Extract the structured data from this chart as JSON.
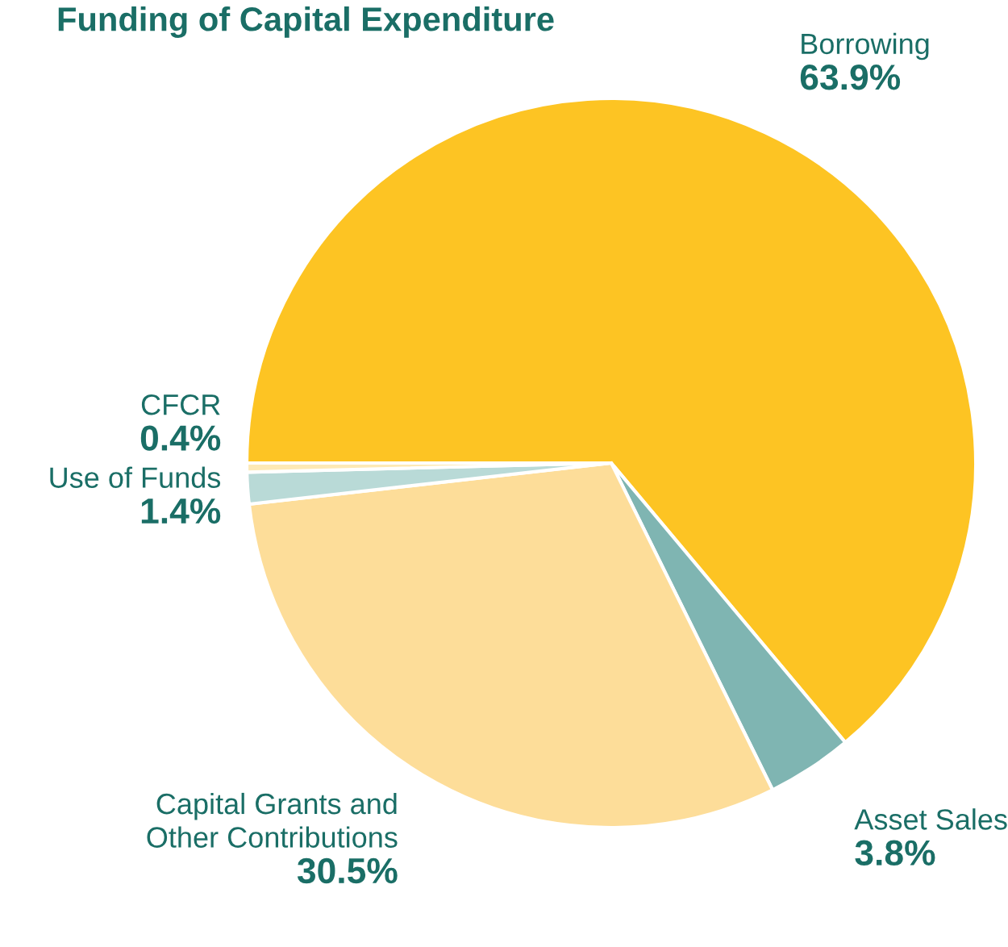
{
  "chart_data": {
    "type": "pie",
    "title": "Funding of Capital Expenditure",
    "categories": [
      "Borrowing",
      "Asset Sales",
      "Capital Grants and\nOther Contributions",
      "Use of Funds",
      "CFCR"
    ],
    "values": [
      63.9,
      3.8,
      30.5,
      1.4,
      0.4
    ],
    "value_labels": [
      "63.9%",
      "3.8%",
      "30.5%",
      "1.4%",
      "0.4%"
    ],
    "colors": [
      "#fdc423",
      "#7fb5b2",
      "#fddd99",
      "#b9dad7",
      "#fde9b5"
    ],
    "legend": false
  }
}
